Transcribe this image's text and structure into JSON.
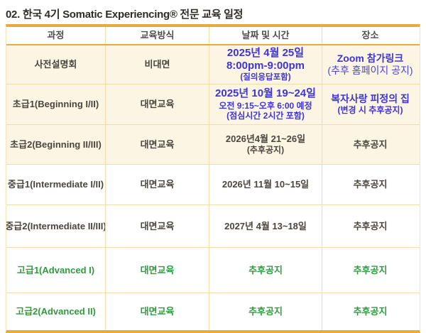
{
  "title": "02. 한국 4기 Somatic Experiencing® 전문 교육 일정",
  "colors": {
    "accent_gold": "#E9A93C",
    "grid_line": "#F3DCA7",
    "highlight_row_bg": "#FDF5E3",
    "text_dark": "#4A463F",
    "text_blue": "#3D35D6",
    "text_blue_soft": "#4B44DB",
    "text_green": "#2E9B3C"
  },
  "table": {
    "headers": [
      "과정",
      "교육방식",
      "날짜 및 시간",
      "장소"
    ],
    "rows": [
      {
        "course": "사전설명회",
        "method": "비대면",
        "date": [
          "2025년 4월 25일",
          "8:00pm-9:00pm",
          "(질의응답포함)"
        ],
        "place": [
          "Zoom 참가링크",
          "(추후 홈페이지 공지)"
        ]
      },
      {
        "course": "초급1(Beginning I/II)",
        "method": "대면교육",
        "date": [
          "2025년 10월 19~24일",
          "오전 9:15~오후 6:00 예정",
          "(점심시간 2시간 포함)"
        ],
        "place": [
          "복자사랑 피정의 집",
          "(변경 시 추후공지)"
        ]
      },
      {
        "course": "초급2(Beginning II/III)",
        "method": "대면교육",
        "date": [
          "2026년4월 21~26일",
          "(추후공지)"
        ],
        "place": [
          "추후공지"
        ]
      },
      {
        "course": "중급1(Intermediate I/II)",
        "method": "대면교육",
        "date": [
          "2026년 11월 10~15일"
        ],
        "place": [
          "추후공지"
        ]
      },
      {
        "course": "중급2(Intermediate II/III)",
        "method": "대면교육",
        "date": [
          "2027년 4월 13~18일"
        ],
        "place": [
          "추후공지"
        ]
      },
      {
        "course": "고급1(Advanced I)",
        "method": "대면교육",
        "date": [
          "추후공지"
        ],
        "place": [
          "추후공지"
        ]
      },
      {
        "course": "고급2(Advanced II)",
        "method": "대면교육",
        "date": [
          "추후공지"
        ],
        "place": [
          "추후공지"
        ]
      }
    ]
  }
}
